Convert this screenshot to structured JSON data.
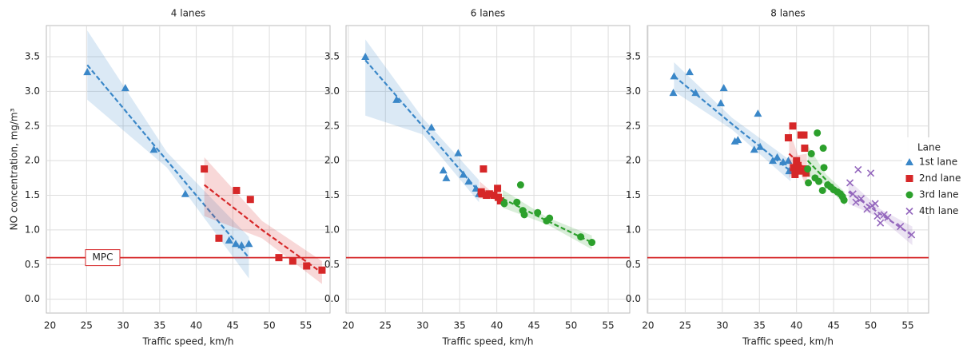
{
  "chart_data": [
    {
      "type": "scatter",
      "title": "4 lanes",
      "xlabel": "Traffic speed, km/h",
      "ylabel": "NO concentration, mg/m³",
      "xlim": [
        19.5,
        58.3
      ],
      "ylim": [
        -0.2,
        3.95
      ],
      "xticks": [
        20,
        25,
        30,
        35,
        40,
        45,
        50,
        55
      ],
      "yticks": [
        {
          "value": 0,
          "label": "0.0"
        },
        0.5,
        {
          "value": 1,
          "label": "1.0"
        },
        1.5,
        {
          "value": 2,
          "label": "2.0"
        },
        2.5,
        {
          "value": 3,
          "label": "3.0"
        },
        3.5
      ],
      "grid": true,
      "hlines": [
        {
          "value": 0.6,
          "label": "MPC",
          "color": "#d62728"
        }
      ],
      "series": [
        {
          "color": "#3a87c8",
          "marker": "triangle",
          "x": [
            25.1,
            30.3,
            34.2,
            38.5,
            44.5,
            45.4,
            46.2,
            47.2
          ],
          "values": [
            3.28,
            3.05,
            2.16,
            1.52,
            0.85,
            0.8,
            0.78,
            0.8
          ],
          "trend": {
            "x": [
              25.1,
              36,
              47.2
            ],
            "values": [
              3.38,
              2.0,
              0.6
            ],
            "lower": [
              2.88,
              1.9,
              0.3
            ],
            "upper": [
              3.88,
              2.12,
              0.9
            ]
          }
        },
        {
          "color": "#d62728",
          "marker": "square",
          "x": [
            41.1,
            43.1,
            45.5,
            47.4,
            51.3,
            53.2,
            55.1,
            57.2
          ],
          "values": [
            1.88,
            0.88,
            1.57,
            1.44,
            0.6,
            0.55,
            0.48,
            0.42
          ],
          "trend": {
            "x": [
              41.1,
              49,
              57.2
            ],
            "values": [
              1.65,
              1.0,
              0.38
            ],
            "lower": [
              1.2,
              0.88,
              0.22
            ],
            "upper": [
              2.05,
              1.13,
              0.55
            ]
          }
        }
      ]
    },
    {
      "type": "scatter",
      "title": "6 lanes",
      "xlabel": "Traffic speed, km/h",
      "xlim": [
        19.7,
        57.9
      ],
      "ylim": [
        -0.2,
        3.95
      ],
      "xticks": [
        20,
        25,
        30,
        35,
        40,
        45,
        50,
        55
      ],
      "yticks": [
        {
          "value": 0,
          "label": "0.0"
        },
        0.5,
        {
          "value": 1,
          "label": "1.0"
        },
        1.5,
        {
          "value": 2,
          "label": "2.0"
        },
        2.5,
        {
          "value": 3,
          "label": "3.0"
        },
        3.5
      ],
      "grid": true,
      "hlines": [
        {
          "value": 0.6,
          "color": "#d62728"
        }
      ],
      "series": [
        {
          "color": "#3a87c8",
          "marker": "triangle",
          "x": [
            22.3,
            26.5,
            31.2,
            32.8,
            33.2,
            34.8,
            35.5,
            36.2,
            37.2,
            37.6
          ],
          "values": [
            3.5,
            2.88,
            2.48,
            1.86,
            1.75,
            2.11,
            1.8,
            1.7,
            1.6,
            1.52
          ],
          "trend": {
            "x": [
              22.3,
              30,
              37.6
            ],
            "values": [
              3.45,
              2.5,
              1.55
            ],
            "lower": [
              2.65,
              2.38,
              1.4
            ],
            "upper": [
              3.75,
              2.62,
              1.72
            ]
          }
        },
        {
          "color": "#d62728",
          "marker": "square",
          "x": [
            37.9,
            38.0,
            38.2,
            38.6,
            39.0,
            39.6,
            40.1,
            40.2,
            40.5
          ],
          "values": [
            1.55,
            1.52,
            1.88,
            1.5,
            1.52,
            1.5,
            1.6,
            1.47,
            1.42
          ],
          "trend": {
            "x": [
              37.7,
              39.1,
              40.5
            ],
            "values": [
              1.56,
              1.52,
              1.48
            ],
            "lower": [
              1.45,
              1.47,
              1.38
            ],
            "upper": [
              1.7,
              1.57,
              1.58
            ]
          }
        },
        {
          "color": "#2ca02c",
          "marker": "circle",
          "x": [
            41.0,
            42.7,
            43.2,
            43.5,
            43.7,
            45.5,
            46.7,
            47.1,
            51.3,
            52.8
          ],
          "values": [
            1.38,
            1.4,
            1.65,
            1.28,
            1.22,
            1.25,
            1.13,
            1.17,
            0.9,
            0.82
          ],
          "trend": {
            "x": [
              40.8,
              46.8,
              52.8
            ],
            "values": [
              1.45,
              1.13,
              0.82
            ],
            "lower": [
              1.32,
              1.08,
              0.72
            ],
            "upper": [
              1.58,
              1.18,
              0.92
            ]
          }
        }
      ]
    },
    {
      "type": "scatter",
      "title": "8 lanes",
      "xlabel": "Traffic speed, km/h",
      "xlim": [
        19.9,
        57.8
      ],
      "ylim": [
        -0.2,
        3.95
      ],
      "xticks": [
        20,
        25,
        30,
        35,
        40,
        45,
        50,
        55
      ],
      "yticks": [
        {
          "value": 0,
          "label": "0.0"
        },
        0.5,
        {
          "value": 1,
          "label": "1.0"
        },
        1.5,
        {
          "value": 2,
          "label": "2.0"
        },
        2.5,
        {
          "value": 3,
          "label": "3.0"
        },
        3.5
      ],
      "grid": true,
      "hlines": [
        {
          "value": 0.6,
          "color": "#d62728"
        }
      ],
      "legend": {
        "title": "Lane",
        "position": "right"
      },
      "series": [
        {
          "name": "1st lane",
          "color": "#3a87c8",
          "marker": "triangle",
          "x": [
            23.5,
            23.4,
            25.6,
            26.4,
            29.8,
            30.2,
            31.7,
            32.1,
            34.3,
            34.8,
            35.1,
            36.8,
            37.4,
            38.2,
            38.9,
            39.0
          ],
          "values": [
            3.22,
            2.98,
            3.28,
            2.98,
            2.83,
            3.05,
            2.28,
            2.3,
            2.16,
            2.68,
            2.2,
            2.0,
            2.05,
            1.98,
            2.0,
            1.85
          ],
          "trend": {
            "x": [
              23.5,
              31.3,
              39.2
            ],
            "values": [
              3.22,
              2.53,
              1.85
            ],
            "lower": [
              3.0,
              2.45,
              1.7
            ],
            "upper": [
              3.42,
              2.62,
              2.0
            ]
          }
        },
        {
          "name": "2nd lane",
          "color": "#d62728",
          "marker": "square",
          "x": [
            38.9,
            39.5,
            39.6,
            39.8,
            40.0,
            40.2,
            40.4,
            40.6,
            41.0,
            41.1,
            41.2,
            41.3
          ],
          "values": [
            2.33,
            2.5,
            1.9,
            1.8,
            2.0,
            1.93,
            1.85,
            2.37,
            2.37,
            2.18,
            1.88,
            1.82
          ],
          "trend": {
            "x": [
              39.0,
              40.2,
              41.4
            ],
            "values": [
              2.1,
              1.98,
              1.85
            ],
            "lower": [
              1.75,
              1.88,
              1.62
            ],
            "upper": [
              2.45,
              2.08,
              2.1
            ]
          }
        },
        {
          "name": "3rd lane",
          "color": "#2ca02c",
          "marker": "circle",
          "x": [
            41.5,
            41.6,
            42.0,
            42.5,
            42.8,
            43.0,
            43.5,
            43.6,
            43.7,
            44.2,
            44.6,
            45.0,
            45.5,
            45.9,
            46.2,
            46.4
          ],
          "values": [
            1.88,
            1.68,
            2.1,
            1.75,
            2.4,
            1.7,
            1.57,
            2.18,
            1.9,
            1.65,
            1.62,
            1.58,
            1.55,
            1.52,
            1.48,
            1.43
          ],
          "trend": {
            "x": [
              41.5,
              44,
              46.5
            ],
            "values": [
              2.0,
              1.72,
              1.45
            ],
            "lower": [
              1.78,
              1.65,
              1.35
            ],
            "upper": [
              2.22,
              1.8,
              1.55
            ]
          }
        },
        {
          "name": "4th lane",
          "color": "#9467bd",
          "marker": "x",
          "x": [
            47.2,
            47.6,
            48.0,
            48.3,
            48.7,
            49.5,
            50.0,
            50.2,
            50.6,
            50.9,
            51.3,
            51.8,
            52.3,
            54.0,
            55.5
          ],
          "values": [
            1.68,
            1.52,
            1.4,
            1.87,
            1.45,
            1.3,
            1.82,
            1.35,
            1.38,
            1.2,
            1.1,
            1.22,
            1.18,
            1.05,
            0.93
          ],
          "trend": {
            "x": [
              47.0,
              51.3,
              55.6
            ],
            "values": [
              1.55,
              1.23,
              0.92
            ],
            "lower": [
              1.38,
              1.17,
              0.78
            ],
            "upper": [
              1.72,
              1.3,
              1.05
            ]
          }
        }
      ]
    }
  ]
}
